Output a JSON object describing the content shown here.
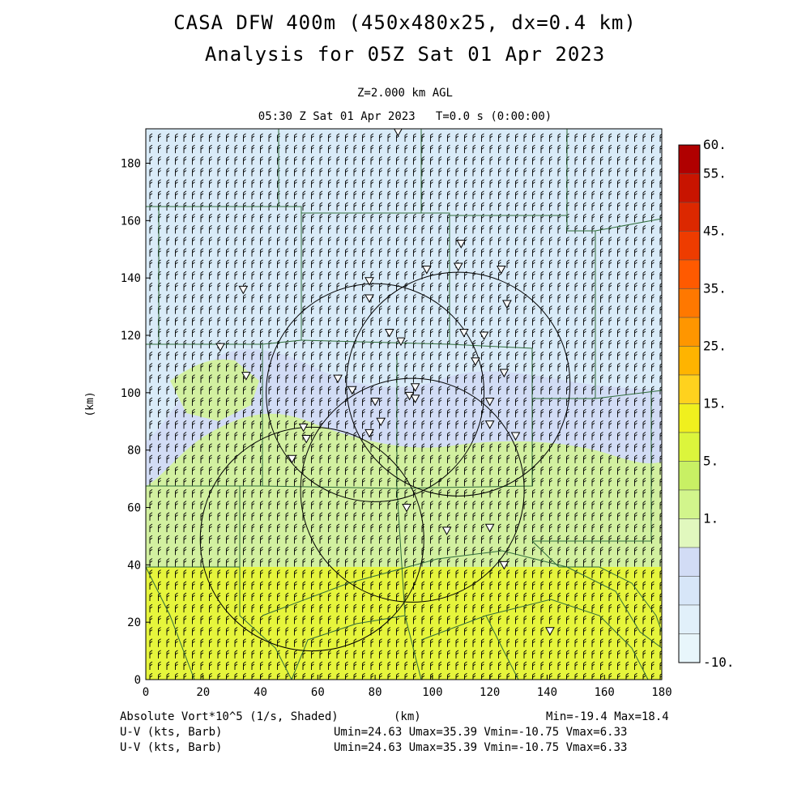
{
  "header": {
    "title_line1": "CASA DFW 400m (450x480x25, dx=0.4 km)",
    "title_line2": "Analysis for 05Z Sat 01 Apr 2023",
    "level": "Z=2.000 km AGL",
    "valid_time": "05:30 Z Sat 01 Apr 2023   T=0.0 s (0:00:00)"
  },
  "footer": {
    "field_label": "Absolute Vort*10^5 (1/s, Shaded)",
    "x_unit": "(km)",
    "minmax": "Min=-19.4 Max=18.4",
    "wind1_label": "U-V (kts, Barb)",
    "wind1_stats": "Umin=24.63 Umax=35.39 Vmin=-10.75 Vmax=6.33",
    "wind2_label": "U-V (kts, Barb)",
    "wind2_stats": "Umin=24.63 Umax=35.39 Vmin=-10.75 Vmax=6.33"
  },
  "chart_data": {
    "type": "heatmap",
    "xlabel": "(km)",
    "ylabel": "(km)",
    "xlim": [
      0,
      180
    ],
    "ylim": [
      0,
      192
    ],
    "x_ticks": [
      "0",
      "20",
      "40",
      "60",
      "80",
      "100",
      "120",
      "140",
      "160",
      "180"
    ],
    "y_ticks": [
      "0",
      "20",
      "40",
      "60",
      "80",
      "100",
      "120",
      "140",
      "160",
      "180"
    ],
    "colorbar": {
      "tick_labels": [
        "60.",
        "55.",
        "45.",
        "35.",
        "25.",
        "15.",
        "5.",
        "1.",
        "-10."
      ],
      "colors": [
        "#b00000",
        "#c81400",
        "#dc2800",
        "#ee3c00",
        "#ff5a00",
        "#ff7800",
        "#ff9600",
        "#ffb400",
        "#ffd21e",
        "#f0f01e",
        "#dcf53c",
        "#c8f064",
        "#d2f58c",
        "#e1f8be",
        "#d2dcf5",
        "#d7e6f8",
        "#e1f0fa",
        "#e8f6fb"
      ]
    },
    "field_regions": [
      {
        "name": "north",
        "value_range": "-10 to 1",
        "color": "#d9ebf8"
      },
      {
        "name": "central-band",
        "value_range": "1 to 5",
        "color": "#d2dcf5"
      },
      {
        "name": "south-central",
        "value_range": "5 to 15",
        "color": "#d2f0a0"
      },
      {
        "name": "south",
        "value_range": "15 to 20",
        "color": "#e6f53c"
      }
    ],
    "radar_rings": [
      {
        "cx": 109,
        "cy": 103,
        "r": 39
      },
      {
        "cx": 93,
        "cy": 66,
        "r": 39
      },
      {
        "cx": 58,
        "cy": 49,
        "r": 39
      },
      {
        "cx": 80,
        "cy": 100,
        "r": 38
      }
    ],
    "wind_barb": {
      "u_range": [
        24.63,
        35.39
      ],
      "v_range": [
        -10.75,
        6.33
      ],
      "units": "kts"
    }
  }
}
